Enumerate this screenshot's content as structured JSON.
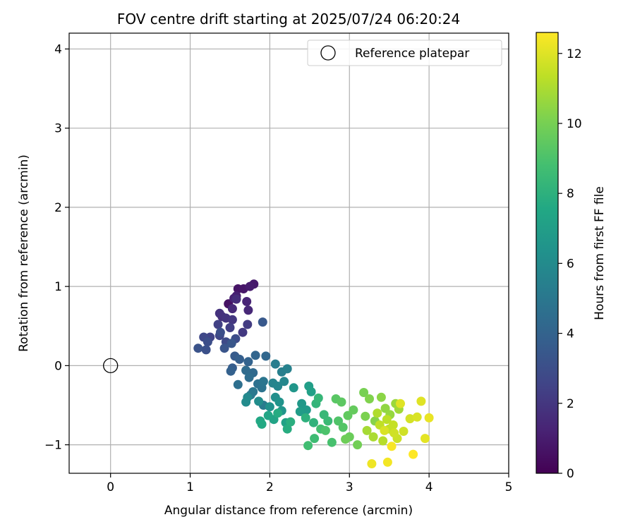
{
  "chart_data": {
    "type": "scatter",
    "title": "FOV centre drift starting at 2025/07/24 06:20:24",
    "xlabel": "Angular distance from reference (arcmin)",
    "ylabel": "Rotation from reference (arcmin)",
    "xlim": [
      -0.52,
      5.0
    ],
    "ylim": [
      -1.36,
      4.2
    ],
    "xticks": [
      0,
      1,
      2,
      3,
      4,
      5
    ],
    "yticks": [
      -1,
      0,
      1,
      2,
      3,
      4
    ],
    "grid": true,
    "legend": {
      "placement": "upper right",
      "entries": [
        "Reference platepar"
      ]
    },
    "colorbar": {
      "label": "Hours from first FF file",
      "colormap": "viridis",
      "range": [
        0,
        12.6
      ],
      "ticks": [
        0,
        2,
        4,
        6,
        8,
        10,
        12
      ]
    },
    "reference": {
      "x": 0,
      "y": 0
    },
    "series": [
      {
        "points": [
          [
            1.48,
            0.78,
            0.6
          ],
          [
            1.6,
            0.97,
            0.7
          ],
          [
            1.67,
            0.97,
            0.8
          ],
          [
            1.8,
            1.03,
            0.9
          ],
          [
            1.75,
            1.0,
            1.0
          ],
          [
            1.58,
            0.88,
            1.1
          ],
          [
            1.55,
            0.85,
            1.2
          ],
          [
            1.71,
            0.81,
            1.3
          ],
          [
            1.73,
            0.7,
            1.4
          ],
          [
            1.53,
            0.72,
            1.5
          ],
          [
            1.58,
            0.84,
            1.6
          ],
          [
            1.4,
            0.62,
            1.7
          ],
          [
            1.37,
            0.66,
            1.8
          ],
          [
            1.45,
            0.6,
            1.9
          ],
          [
            1.53,
            0.58,
            2.0
          ],
          [
            1.66,
            0.42,
            2.1
          ],
          [
            1.72,
            0.52,
            2.2
          ],
          [
            1.5,
            0.48,
            2.3
          ],
          [
            1.35,
            0.52,
            2.4
          ],
          [
            1.25,
            0.36,
            2.5
          ],
          [
            1.37,
            0.38,
            2.6
          ],
          [
            1.17,
            0.36,
            2.7
          ],
          [
            1.45,
            0.3,
            2.8
          ],
          [
            1.57,
            0.34,
            2.9
          ],
          [
            1.38,
            0.42,
            3.0
          ],
          [
            1.22,
            0.3,
            3.0
          ],
          [
            1.2,
            0.2,
            3.1
          ],
          [
            1.1,
            0.22,
            3.2
          ],
          [
            1.43,
            0.22,
            3.3
          ],
          [
            1.52,
            0.28,
            3.4
          ],
          [
            1.91,
            0.55,
            3.5
          ],
          [
            1.56,
            0.12,
            3.6
          ],
          [
            1.53,
            -0.03,
            3.7
          ],
          [
            1.62,
            0.08,
            3.8
          ],
          [
            1.51,
            -0.07,
            3.9
          ],
          [
            1.73,
            0.05,
            4.0
          ],
          [
            1.82,
            0.13,
            4.1
          ],
          [
            1.95,
            0.12,
            4.2
          ],
          [
            1.79,
            -0.09,
            4.3
          ],
          [
            1.7,
            -0.06,
            4.4
          ],
          [
            1.74,
            -0.15,
            4.5
          ],
          [
            1.6,
            -0.24,
            4.6
          ],
          [
            1.85,
            -0.23,
            4.7
          ],
          [
            1.9,
            -0.28,
            4.8
          ],
          [
            1.92,
            -0.2,
            4.9
          ],
          [
            1.79,
            -0.33,
            5.0
          ],
          [
            1.76,
            -0.37,
            5.1
          ],
          [
            1.92,
            -0.5,
            5.2
          ],
          [
            2.07,
            0.02,
            5.3
          ],
          [
            2.15,
            -0.08,
            5.4
          ],
          [
            2.22,
            -0.04,
            5.5
          ],
          [
            2.04,
            -0.22,
            5.6
          ],
          [
            2.1,
            -0.26,
            5.7
          ],
          [
            2.18,
            -0.2,
            5.8
          ],
          [
            1.72,
            -0.4,
            5.9
          ],
          [
            1.7,
            -0.46,
            6.0
          ],
          [
            1.86,
            -0.45,
            6.1
          ],
          [
            2.07,
            -0.4,
            6.2
          ],
          [
            2.0,
            -0.52,
            6.3
          ],
          [
            2.12,
            -0.46,
            6.4
          ],
          [
            2.15,
            -0.57,
            6.5
          ],
          [
            2.3,
            -0.28,
            6.6
          ],
          [
            2.4,
            -0.48,
            6.7
          ],
          [
            2.46,
            -0.56,
            6.8
          ],
          [
            2.38,
            -0.58,
            6.9
          ],
          [
            2.49,
            -0.26,
            7.0
          ],
          [
            2.52,
            -0.33,
            7.1
          ],
          [
            2.2,
            -0.72,
            7.2
          ],
          [
            2.05,
            -0.68,
            7.3
          ],
          [
            1.98,
            -0.63,
            7.4
          ],
          [
            1.88,
            -0.7,
            7.5
          ],
          [
            1.9,
            -0.74,
            7.6
          ],
          [
            2.1,
            -0.6,
            7.7
          ],
          [
            2.22,
            -0.8,
            7.8
          ],
          [
            2.26,
            -0.71,
            7.9
          ],
          [
            2.45,
            -0.66,
            8.0
          ],
          [
            2.55,
            -0.72,
            8.1
          ],
          [
            2.58,
            -0.48,
            8.2
          ],
          [
            2.61,
            -0.41,
            8.3
          ],
          [
            2.68,
            -0.62,
            8.4
          ],
          [
            2.73,
            -0.7,
            8.5
          ],
          [
            2.56,
            -0.92,
            8.6
          ],
          [
            2.48,
            -1.01,
            8.7
          ],
          [
            2.64,
            -0.8,
            8.8
          ],
          [
            2.78,
            -0.97,
            8.9
          ],
          [
            2.7,
            -0.82,
            9.0
          ],
          [
            2.86,
            -0.7,
            9.1
          ],
          [
            2.92,
            -0.78,
            9.2
          ],
          [
            2.83,
            -0.42,
            9.3
          ],
          [
            2.9,
            -0.46,
            9.4
          ],
          [
            2.98,
            -0.63,
            9.5
          ],
          [
            3.05,
            -0.56,
            9.6
          ],
          [
            3.0,
            -0.9,
            9.7
          ],
          [
            2.95,
            -0.93,
            9.8
          ],
          [
            3.1,
            -1.0,
            9.9
          ],
          [
            3.18,
            -0.34,
            10.0
          ],
          [
            3.2,
            -0.64,
            10.1
          ],
          [
            3.25,
            -0.42,
            10.2
          ],
          [
            3.32,
            -0.7,
            10.3
          ],
          [
            3.4,
            -0.4,
            10.4
          ],
          [
            3.45,
            -0.54,
            10.5
          ],
          [
            3.51,
            -0.62,
            10.6
          ],
          [
            3.58,
            -0.48,
            10.7
          ],
          [
            3.62,
            -0.55,
            10.8
          ],
          [
            3.22,
            -0.82,
            10.9
          ],
          [
            3.3,
            -0.9,
            11.0
          ],
          [
            3.35,
            -0.6,
            11.1
          ],
          [
            3.42,
            -0.95,
            11.2
          ],
          [
            3.47,
            -0.68,
            11.3
          ],
          [
            3.5,
            -0.8,
            11.4
          ],
          [
            3.55,
            -0.75,
            11.5
          ],
          [
            3.6,
            -0.92,
            11.6
          ],
          [
            3.68,
            -0.83,
            11.7
          ],
          [
            3.76,
            -0.67,
            11.8
          ],
          [
            3.85,
            -0.65,
            11.9
          ],
          [
            3.9,
            -0.45,
            12.0
          ],
          [
            3.95,
            -0.92,
            12.1
          ],
          [
            4.0,
            -0.66,
            12.2
          ],
          [
            3.28,
            -1.24,
            12.3
          ],
          [
            3.48,
            -1.22,
            12.4
          ],
          [
            3.53,
            -1.02,
            12.5
          ],
          [
            3.8,
            -1.12,
            12.6
          ],
          [
            3.64,
            -0.48,
            12.0
          ],
          [
            3.38,
            -0.75,
            11.4
          ],
          [
            3.56,
            -0.85,
            11.7
          ],
          [
            3.44,
            -0.82,
            11.9
          ]
        ]
      }
    ]
  }
}
